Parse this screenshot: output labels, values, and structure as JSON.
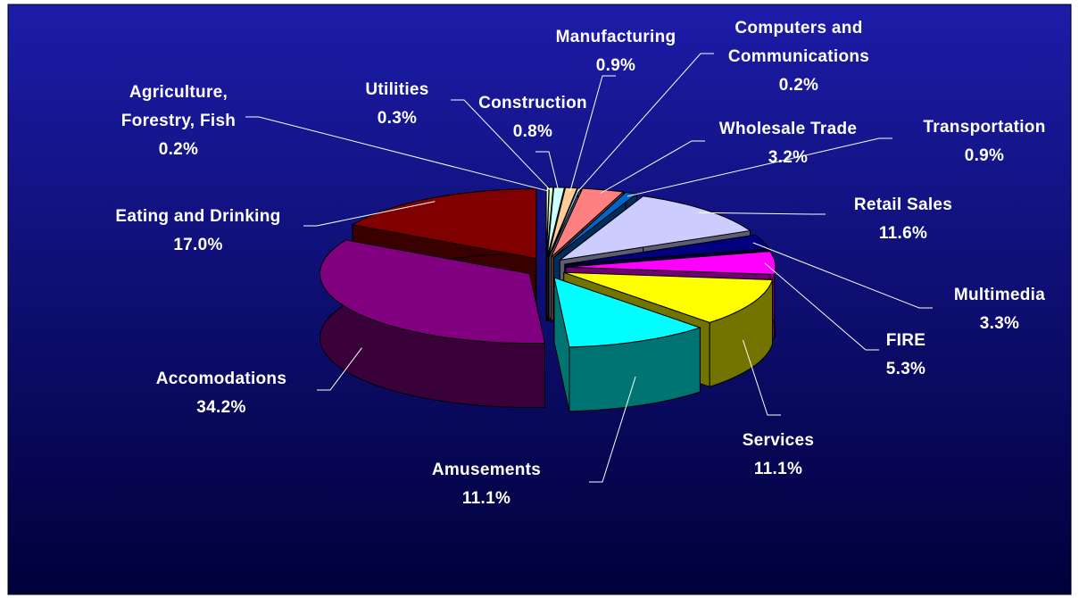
{
  "chart_data": {
    "type": "pie",
    "categories": [
      "Agriculture,\nForestry, Fish",
      "Utilities",
      "Construction",
      "Manufacturing",
      "Computers and\nCommunications",
      "Wholesale Trade",
      "Transportation",
      "Retail Sales",
      "Multimedia",
      "FIRE",
      "Services",
      "Amusements",
      "Accomodations",
      "Eating and Drinking"
    ],
    "values": [
      0.2,
      0.3,
      0.8,
      0.9,
      0.2,
      3.2,
      0.9,
      11.6,
      3.3,
      5.3,
      11.1,
      11.1,
      34.2,
      17.0
    ],
    "value_labels": [
      "0.2%",
      "0.3%",
      "0.8%",
      "0.9%",
      "0.2%",
      "3.2%",
      "0.9%",
      "11.6%",
      "3.3%",
      "5.3%",
      "11.1%",
      "11.1%",
      "34.2%",
      "17.0%"
    ],
    "colors": [
      "#ffffcc",
      "#ccffcc",
      "#ccffff",
      "#ffcc99",
      "#99ccff",
      "#ff8080",
      "#0066cc",
      "#ccccff",
      "#000080",
      "#ff00ff",
      "#ffff00",
      "#00ffff",
      "#800080",
      "#800000"
    ]
  }
}
